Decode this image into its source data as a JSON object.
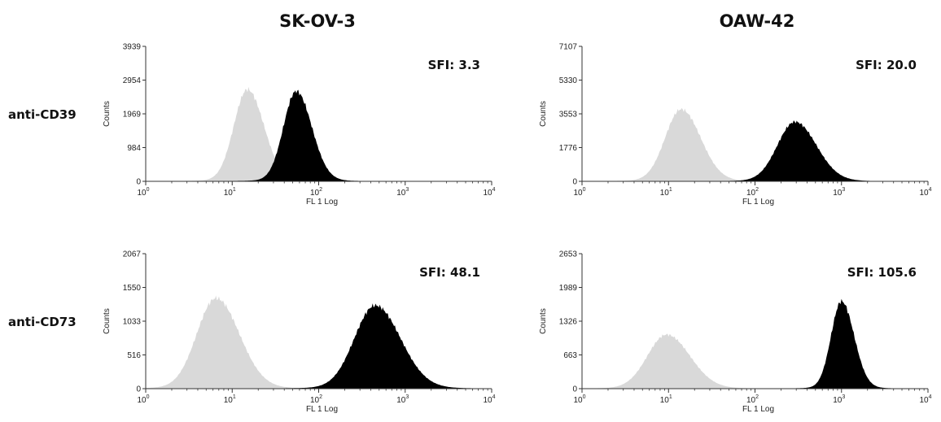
{
  "column_titles": [
    "SK-OV-3",
    "OAW-42"
  ],
  "row_labels": [
    "anti-CD39",
    "anti-CD73"
  ],
  "colors": {
    "control": "#d9d9d9",
    "stained": "#000000",
    "axis": "#333333"
  },
  "chart_data": [
    {
      "type": "area",
      "cell_line": "SK-OV-3",
      "marker": "anti-CD39",
      "annotation": "SFI: 3.3",
      "xlabel": "FL 1 Log",
      "ylabel": "Counts",
      "xscale": "log",
      "xlim": [
        1,
        10000
      ],
      "xticks": [
        "10",
        "10",
        "10",
        "10",
        "10"
      ],
      "xtick_exponents": [
        "0",
        "1",
        "2",
        "3",
        "4"
      ],
      "ylim": [
        0,
        3939
      ],
      "yticks": [
        "0",
        "984",
        "1969",
        "2954",
        "3939"
      ],
      "series": [
        {
          "peak_x": 15,
          "peak_y": 2650,
          "log_width": 0.17
        },
        {
          "peak_x": 55,
          "peak_y": 2600,
          "log_width": 0.16
        }
      ]
    },
    {
      "type": "area",
      "cell_line": "OAW-42",
      "marker": "anti-CD39",
      "annotation": "SFI: 20.0",
      "xlabel": "FL 1 Log",
      "ylabel": "Counts",
      "xscale": "log",
      "xlim": [
        1,
        10000
      ],
      "xticks": [
        "10",
        "10",
        "10",
        "10",
        "10"
      ],
      "xtick_exponents": [
        "0",
        "1",
        "2",
        "3",
        "4"
      ],
      "ylim": [
        0,
        7107
      ],
      "yticks": [
        "0",
        "1776",
        "3553",
        "5330",
        "7107"
      ],
      "series": [
        {
          "peak_x": 14,
          "peak_y": 3750,
          "log_width": 0.2
        },
        {
          "peak_x": 290,
          "peak_y": 3100,
          "log_width": 0.22
        }
      ]
    },
    {
      "type": "area",
      "cell_line": "SK-OV-3",
      "marker": "anti-CD73",
      "annotation": "SFI: 48.1",
      "xlabel": "FL 1 Log",
      "ylabel": "Counts",
      "xscale": "log",
      "xlim": [
        1,
        10000
      ],
      "xticks": [
        "10",
        "10",
        "10",
        "10",
        "10"
      ],
      "xtick_exponents": [
        "0",
        "1",
        "2",
        "3",
        "4"
      ],
      "ylim": [
        0,
        2067
      ],
      "yticks": [
        "0",
        "516",
        "1033",
        "1550",
        "2067"
      ],
      "series": [
        {
          "peak_x": 6.5,
          "peak_y": 1370,
          "log_width": 0.24
        },
        {
          "peak_x": 450,
          "peak_y": 1260,
          "log_width": 0.26
        }
      ]
    },
    {
      "type": "area",
      "cell_line": "OAW-42",
      "marker": "anti-CD73",
      "annotation": "SFI: 105.6",
      "xlabel": "FL 1 Log",
      "ylabel": "Counts",
      "xscale": "log",
      "xlim": [
        1,
        10000
      ],
      "xticks": [
        "10",
        "10",
        "10",
        "10",
        "10"
      ],
      "xtick_exponents": [
        "0",
        "1",
        "2",
        "3",
        "4"
      ],
      "ylim": [
        0,
        2653
      ],
      "yticks": [
        "0",
        "663",
        "1326",
        "1989",
        "2653"
      ],
      "series": [
        {
          "peak_x": 9.5,
          "peak_y": 1050,
          "log_width": 0.24
        },
        {
          "peak_x": 1000,
          "peak_y": 1700,
          "log_width": 0.13
        }
      ]
    }
  ]
}
